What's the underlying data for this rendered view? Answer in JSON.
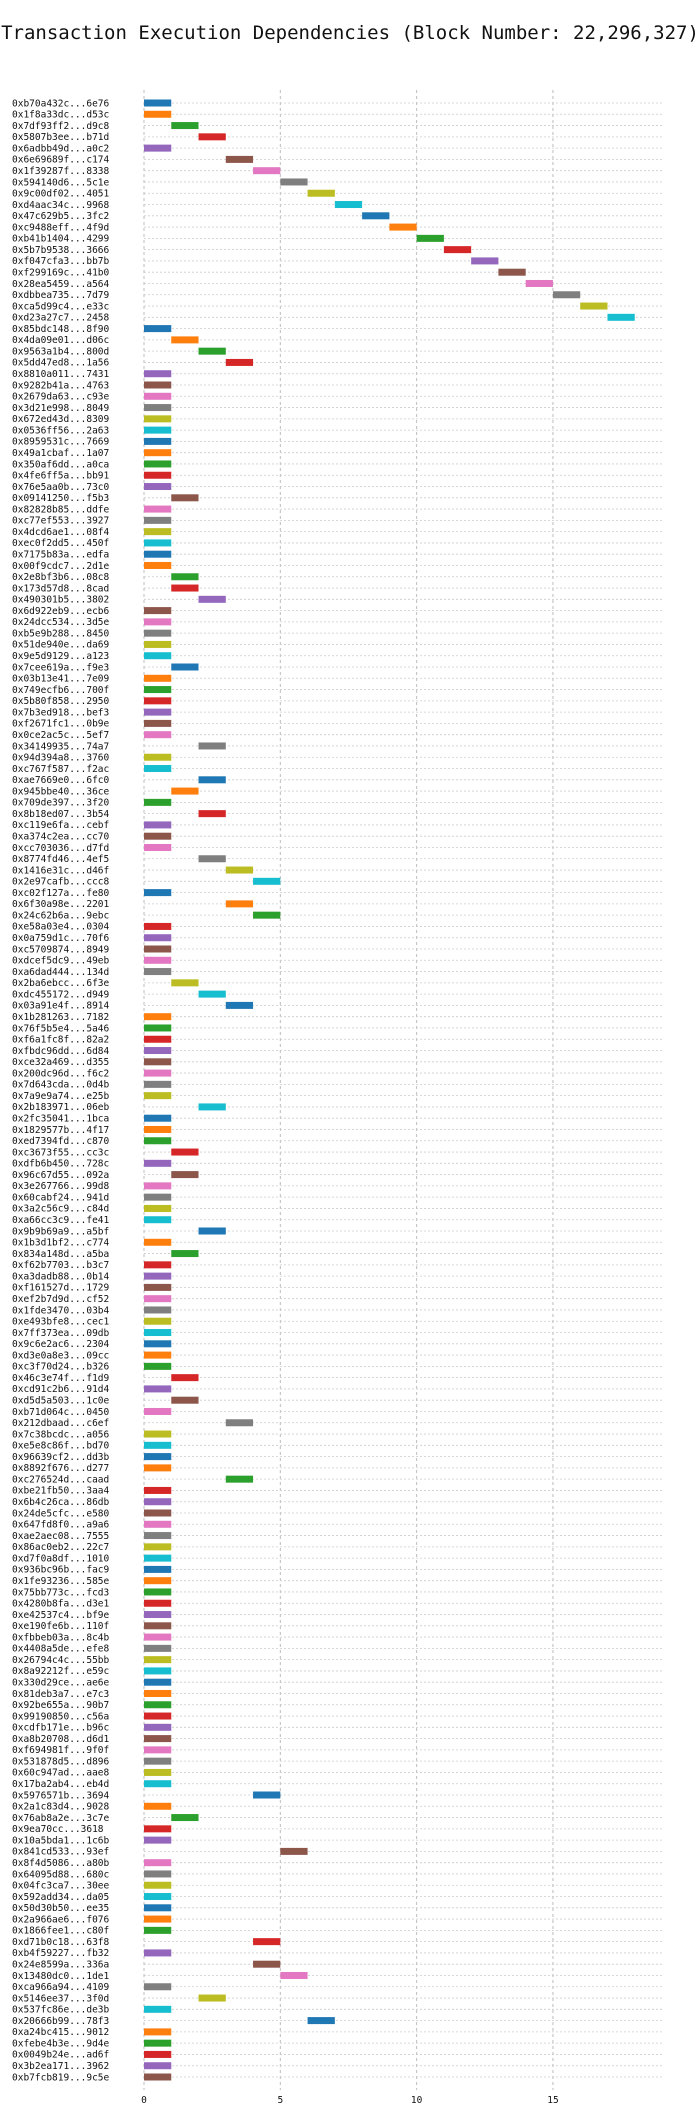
{
  "chart_data": {
    "type": "bar",
    "orientation": "horizontal",
    "title": "Transaction Execution Dependencies (Block Number: 22,296,327)",
    "xlim": [
      0,
      19
    ],
    "xticks": [
      0,
      5,
      10,
      15
    ],
    "grid": true,
    "palette": [
      "#1f77b4",
      "#ff7f0e",
      "#2ca02c",
      "#d62728",
      "#9467bd",
      "#8c564b",
      "#e377c2",
      "#7f7f7f",
      "#bcbd22",
      "#17becf"
    ],
    "transactions": [
      {
        "label": "0xb70a432c...6e76",
        "start": 0,
        "end": 1
      },
      {
        "label": "0x1f8a33dc...d53c",
        "start": 0,
        "end": 1
      },
      {
        "label": "0x7df93ff2...d9c8",
        "start": 1,
        "end": 2
      },
      {
        "label": "0x5807b3ee...b71d",
        "start": 2,
        "end": 3
      },
      {
        "label": "0x6adbb49d...a0c2",
        "start": 0,
        "end": 1
      },
      {
        "label": "0x6e69689f...c174",
        "start": 3,
        "end": 4
      },
      {
        "label": "0x1f39287f...8338",
        "start": 4,
        "end": 5
      },
      {
        "label": "0x594140d6...5c1e",
        "start": 5,
        "end": 6
      },
      {
        "label": "0x9c00df02...4051",
        "start": 6,
        "end": 7
      },
      {
        "label": "0xd4aac34c...9968",
        "start": 7,
        "end": 8
      },
      {
        "label": "0x47c629b5...3fc2",
        "start": 8,
        "end": 9
      },
      {
        "label": "0xc9488eff...4f9d",
        "start": 9,
        "end": 10
      },
      {
        "label": "0xb41b1404...4299",
        "start": 10,
        "end": 11
      },
      {
        "label": "0x5b7b9538...3666",
        "start": 11,
        "end": 12
      },
      {
        "label": "0xf047cfa3...bb7b",
        "start": 12,
        "end": 13
      },
      {
        "label": "0xf299169c...41b0",
        "start": 13,
        "end": 14
      },
      {
        "label": "0x28ea5459...a564",
        "start": 14,
        "end": 15
      },
      {
        "label": "0xdbbea735...7d79",
        "start": 15,
        "end": 16
      },
      {
        "label": "0xca5d99c4...e33c",
        "start": 16,
        "end": 17
      },
      {
        "label": "0xd23a27c7...2458",
        "start": 17,
        "end": 18
      },
      {
        "label": "0x85bdc148...8f90",
        "start": 0,
        "end": 1
      },
      {
        "label": "0x4da09e01...d06c",
        "start": 1,
        "end": 2
      },
      {
        "label": "0x9563a1b4...800d",
        "start": 2,
        "end": 3
      },
      {
        "label": "0x5dd47ed8...1a56",
        "start": 3,
        "end": 4
      },
      {
        "label": "0x8810a011...7431",
        "start": 0,
        "end": 1
      },
      {
        "label": "0x9282b41a...4763",
        "start": 0,
        "end": 1
      },
      {
        "label": "0x2679da63...c93e",
        "start": 0,
        "end": 1
      },
      {
        "label": "0x3d21e998...8049",
        "start": 0,
        "end": 1
      },
      {
        "label": "0x672ed43d...8309",
        "start": 0,
        "end": 1
      },
      {
        "label": "0x0536ff56...2a63",
        "start": 0,
        "end": 1
      },
      {
        "label": "0x8959531c...7669",
        "start": 0,
        "end": 1
      },
      {
        "label": "0x49a1cbaf...1a07",
        "start": 0,
        "end": 1
      },
      {
        "label": "0x350af6dd...a0ca",
        "start": 0,
        "end": 1
      },
      {
        "label": "0x4fe6ff5a...bb91",
        "start": 0,
        "end": 1
      },
      {
        "label": "0x76e5aa0b...73c0",
        "start": 0,
        "end": 1
      },
      {
        "label": "0x09141250...f5b3",
        "start": 1,
        "end": 2
      },
      {
        "label": "0x82828b85...ddfe",
        "start": 0,
        "end": 1
      },
      {
        "label": "0xc77ef553...3927",
        "start": 0,
        "end": 1
      },
      {
        "label": "0x4dcd6ae1...08f4",
        "start": 0,
        "end": 1
      },
      {
        "label": "0xec0f2dd5...450f",
        "start": 0,
        "end": 1
      },
      {
        "label": "0x7175b83a...edfa",
        "start": 0,
        "end": 1
      },
      {
        "label": "0x00f9cdc7...2d1e",
        "start": 0,
        "end": 1
      },
      {
        "label": "0x2e8bf3b6...08c8",
        "start": 1,
        "end": 2
      },
      {
        "label": "0x173d57d8...8cad",
        "start": 1,
        "end": 2
      },
      {
        "label": "0x490301b5...3802",
        "start": 2,
        "end": 3
      },
      {
        "label": "0x6d922eb9...ecb6",
        "start": 0,
        "end": 1
      },
      {
        "label": "0x24dcc534...3d5e",
        "start": 0,
        "end": 1
      },
      {
        "label": "0xb5e9b288...8450",
        "start": 0,
        "end": 1
      },
      {
        "label": "0x51de940e...da69",
        "start": 0,
        "end": 1
      },
      {
        "label": "0x9e5d9129...a123",
        "start": 0,
        "end": 1
      },
      {
        "label": "0x7cee619a...f9e3",
        "start": 1,
        "end": 2
      },
      {
        "label": "0x03b13e41...7e09",
        "start": 0,
        "end": 1
      },
      {
        "label": "0x749ecfb6...700f",
        "start": 0,
        "end": 1
      },
      {
        "label": "0x5b80f858...2950",
        "start": 0,
        "end": 1
      },
      {
        "label": "0x7b3ed918...bef3",
        "start": 0,
        "end": 1
      },
      {
        "label": "0xf2671fc1...0b9e",
        "start": 0,
        "end": 1
      },
      {
        "label": "0x0ce2ac5c...5ef7",
        "start": 0,
        "end": 1
      },
      {
        "label": "0x34149935...74a7",
        "start": 2,
        "end": 3
      },
      {
        "label": "0x94d394a8...3760",
        "start": 0,
        "end": 1
      },
      {
        "label": "0xc767f587...f2ac",
        "start": 0,
        "end": 1
      },
      {
        "label": "0xae7669e0...6fc0",
        "start": 2,
        "end": 3
      },
      {
        "label": "0x945bbe40...36ce",
        "start": 1,
        "end": 2
      },
      {
        "label": "0x709de397...3f20",
        "start": 0,
        "end": 1
      },
      {
        "label": "0x8b18ed07...3b54",
        "start": 2,
        "end": 3
      },
      {
        "label": "0xc119e6fa...cebf",
        "start": 0,
        "end": 1
      },
      {
        "label": "0xa374c2ea...cc70",
        "start": 0,
        "end": 1
      },
      {
        "label": "0xcc703036...d7fd",
        "start": 0,
        "end": 1
      },
      {
        "label": "0x8774fd46...4ef5",
        "start": 2,
        "end": 3
      },
      {
        "label": "0x1416e31c...d46f",
        "start": 3,
        "end": 4
      },
      {
        "label": "0x2e97cafb...ccc8",
        "start": 4,
        "end": 5
      },
      {
        "label": "0xc02f127a...fe80",
        "start": 0,
        "end": 1
      },
      {
        "label": "0x6f30a98e...2201",
        "start": 3,
        "end": 4
      },
      {
        "label": "0x24c62b6a...9ebc",
        "start": 4,
        "end": 5
      },
      {
        "label": "0xe58a03e4...0304",
        "start": 0,
        "end": 1
      },
      {
        "label": "0x0a759d1c...70f6",
        "start": 0,
        "end": 1
      },
      {
        "label": "0xc5709874...8949",
        "start": 0,
        "end": 1
      },
      {
        "label": "0xdcef5dc9...49eb",
        "start": 0,
        "end": 1
      },
      {
        "label": "0xa6dad444...134d",
        "start": 0,
        "end": 1
      },
      {
        "label": "0x2ba6ebcc...6f3e",
        "start": 1,
        "end": 2
      },
      {
        "label": "0xdc455172...d949",
        "start": 2,
        "end": 3
      },
      {
        "label": "0x03a91e4f...8914",
        "start": 3,
        "end": 4
      },
      {
        "label": "0x1b281263...7182",
        "start": 0,
        "end": 1
      },
      {
        "label": "0x76f5b5e4...5a46",
        "start": 0,
        "end": 1
      },
      {
        "label": "0xf6a1fc8f...82a2",
        "start": 0,
        "end": 1
      },
      {
        "label": "0xfbdc96dd...6d84",
        "start": 0,
        "end": 1
      },
      {
        "label": "0xce32a469...d355",
        "start": 0,
        "end": 1
      },
      {
        "label": "0x200dc96d...f6c2",
        "start": 0,
        "end": 1
      },
      {
        "label": "0x7d643cda...0d4b",
        "start": 0,
        "end": 1
      },
      {
        "label": "0x7a9e9a74...e25b",
        "start": 0,
        "end": 1
      },
      {
        "label": "0x2b183971...06eb",
        "start": 2,
        "end": 3
      },
      {
        "label": "0x2fc35041...1bca",
        "start": 0,
        "end": 1
      },
      {
        "label": "0x1829577b...4f17",
        "start": 0,
        "end": 1
      },
      {
        "label": "0xed7394fd...c870",
        "start": 0,
        "end": 1
      },
      {
        "label": "0xc3673f55...cc3c",
        "start": 1,
        "end": 2
      },
      {
        "label": "0xdfb6b450...728c",
        "start": 0,
        "end": 1
      },
      {
        "label": "0x96c67d55...092a",
        "start": 1,
        "end": 2
      },
      {
        "label": "0x3e267766...99d8",
        "start": 0,
        "end": 1
      },
      {
        "label": "0x60cabf24...941d",
        "start": 0,
        "end": 1
      },
      {
        "label": "0x3a2c56c9...c84d",
        "start": 0,
        "end": 1
      },
      {
        "label": "0xa66cc3c9...fe41",
        "start": 0,
        "end": 1
      },
      {
        "label": "0x9b9b69a9...a5bf",
        "start": 2,
        "end": 3
      },
      {
        "label": "0x1b3d1bf2...c774",
        "start": 0,
        "end": 1
      },
      {
        "label": "0x834a148d...a5ba",
        "start": 1,
        "end": 2
      },
      {
        "label": "0xf62b7703...b3c7",
        "start": 0,
        "end": 1
      },
      {
        "label": "0xa3dadb88...0b14",
        "start": 0,
        "end": 1
      },
      {
        "label": "0xf161527d...1729",
        "start": 0,
        "end": 1
      },
      {
        "label": "0xef2b7d9d...cf52",
        "start": 0,
        "end": 1
      },
      {
        "label": "0x1fde3470...03b4",
        "start": 0,
        "end": 1
      },
      {
        "label": "0xe493bfe8...cec1",
        "start": 0,
        "end": 1
      },
      {
        "label": "0x7ff373ea...09db",
        "start": 0,
        "end": 1
      },
      {
        "label": "0x9c6e2ac6...2304",
        "start": 0,
        "end": 1
      },
      {
        "label": "0xd3e0a8e3...09cc",
        "start": 0,
        "end": 1
      },
      {
        "label": "0xc3f70d24...b326",
        "start": 0,
        "end": 1
      },
      {
        "label": "0x46c3e74f...f1d9",
        "start": 1,
        "end": 2
      },
      {
        "label": "0xcd91c2b6...91d4",
        "start": 0,
        "end": 1
      },
      {
        "label": "0xd5d5a503...1c0e",
        "start": 1,
        "end": 2
      },
      {
        "label": "0xb71d064c...0450",
        "start": 0,
        "end": 1
      },
      {
        "label": "0x212dbaad...c6ef",
        "start": 3,
        "end": 4
      },
      {
        "label": "0x7c38bcdc...a056",
        "start": 0,
        "end": 1
      },
      {
        "label": "0xe5e8c86f...bd70",
        "start": 0,
        "end": 1
      },
      {
        "label": "0x96639cf2...dd3b",
        "start": 0,
        "end": 1
      },
      {
        "label": "0x8892f676...d277",
        "start": 0,
        "end": 1
      },
      {
        "label": "0xc276524d...caad",
        "start": 3,
        "end": 4
      },
      {
        "label": "0xbe21fb50...3aa4",
        "start": 0,
        "end": 1
      },
      {
        "label": "0x6b4c26ca...86db",
        "start": 0,
        "end": 1
      },
      {
        "label": "0x24de5cfc...e580",
        "start": 0,
        "end": 1
      },
      {
        "label": "0x647fd8f0...a9a6",
        "start": 0,
        "end": 1
      },
      {
        "label": "0xae2aec08...7555",
        "start": 0,
        "end": 1
      },
      {
        "label": "0x86ac0eb2...22c7",
        "start": 0,
        "end": 1
      },
      {
        "label": "0xd7f0a8df...1010",
        "start": 0,
        "end": 1
      },
      {
        "label": "0x936bc96b...fac9",
        "start": 0,
        "end": 1
      },
      {
        "label": "0x1fe93236...585e",
        "start": 0,
        "end": 1
      },
      {
        "label": "0x75bb773c...fcd3",
        "start": 0,
        "end": 1
      },
      {
        "label": "0x4280b8fa...d3e1",
        "start": 0,
        "end": 1
      },
      {
        "label": "0xe42537c4...bf9e",
        "start": 0,
        "end": 1
      },
      {
        "label": "0xe190fe6b...110f",
        "start": 0,
        "end": 1
      },
      {
        "label": "0xfbbeb03a...8c4b",
        "start": 0,
        "end": 1
      },
      {
        "label": "0x4408a5de...efe8",
        "start": 0,
        "end": 1
      },
      {
        "label": "0x26794c4c...55bb",
        "start": 0,
        "end": 1
      },
      {
        "label": "0x8a92212f...e59c",
        "start": 0,
        "end": 1
      },
      {
        "label": "0x330d29ce...ae6e",
        "start": 0,
        "end": 1
      },
      {
        "label": "0x81deb3a7...e7c3",
        "start": 0,
        "end": 1
      },
      {
        "label": "0x92be655a...90b7",
        "start": 0,
        "end": 1
      },
      {
        "label": "0x99190850...c56a",
        "start": 0,
        "end": 1
      },
      {
        "label": "0xcdfb171e...b96c",
        "start": 0,
        "end": 1
      },
      {
        "label": "0xa8b20708...d6d1",
        "start": 0,
        "end": 1
      },
      {
        "label": "0xf694981f...9f0f",
        "start": 0,
        "end": 1
      },
      {
        "label": "0x531878d5...d896",
        "start": 0,
        "end": 1
      },
      {
        "label": "0x60c947ad...aae8",
        "start": 0,
        "end": 1
      },
      {
        "label": "0x17ba2ab4...eb4d",
        "start": 0,
        "end": 1
      },
      {
        "label": "0x5976571b...3694",
        "start": 4,
        "end": 5
      },
      {
        "label": "0x2a1c83d4...9028",
        "start": 0,
        "end": 1
      },
      {
        "label": "0x76ab8a2e...3c7e",
        "start": 1,
        "end": 2
      },
      {
        "label": "0x9ea70cc...3618",
        "start": 0,
        "end": 1
      },
      {
        "label": "0x10a5bda1...1c6b",
        "start": 0,
        "end": 1
      },
      {
        "label": "0x841cd533...93ef",
        "start": 5,
        "end": 6
      },
      {
        "label": "0x8f4d5086...a80b",
        "start": 0,
        "end": 1
      },
      {
        "label": "0x64095d88...680c",
        "start": 0,
        "end": 1
      },
      {
        "label": "0x04fc3ca7...30ee",
        "start": 0,
        "end": 1
      },
      {
        "label": "0x592add34...da05",
        "start": 0,
        "end": 1
      },
      {
        "label": "0x50d30b50...ee35",
        "start": 0,
        "end": 1
      },
      {
        "label": "0x2a966ae6...f076",
        "start": 0,
        "end": 1
      },
      {
        "label": "0x1866fee1...c80f",
        "start": 0,
        "end": 1
      },
      {
        "label": "0xd71b0c18...63f8",
        "start": 4,
        "end": 5
      },
      {
        "label": "0xb4f59227...fb32",
        "start": 0,
        "end": 1
      },
      {
        "label": "0x24e8599a...336a",
        "start": 4,
        "end": 5
      },
      {
        "label": "0x13480dc0...1de1",
        "start": 5,
        "end": 6
      },
      {
        "label": "0xca966a94...4109",
        "start": 0,
        "end": 1
      },
      {
        "label": "0x5146ee37...3f0d",
        "start": 2,
        "end": 3
      },
      {
        "label": "0x537fc86e...de3b",
        "start": 0,
        "end": 1
      },
      {
        "label": "0x20666b99...78f3",
        "start": 6,
        "end": 7
      },
      {
        "label": "0xa24bc415...9012",
        "start": 0,
        "end": 1
      },
      {
        "label": "0xfebe4b3e...9d4e",
        "start": 0,
        "end": 1
      },
      {
        "label": "0x0049b24e...ad6f",
        "start": 0,
        "end": 1
      },
      {
        "label": "0x3b2ea171...3962",
        "start": 0,
        "end": 1
      },
      {
        "label": "0xb7fcb819...9c5e",
        "start": 0,
        "end": 1
      }
    ]
  }
}
